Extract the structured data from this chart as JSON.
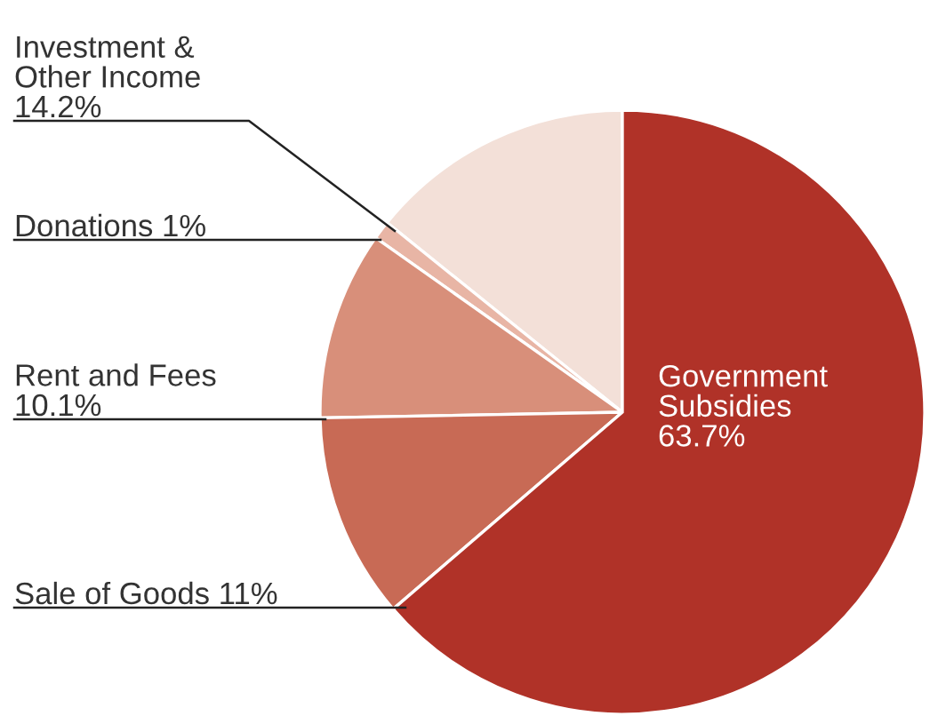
{
  "chart_data": {
    "type": "pie",
    "categories": [
      "Investment &\nOther Income",
      "Donations",
      "Rent and Fees",
      "Sale of Goods",
      "Government\nSubsidies"
    ],
    "values": [
      14.2,
      1,
      10.1,
      11,
      63.7
    ],
    "value_labels": [
      "14.2%",
      "1%",
      "10.1%",
      "11%",
      "63.7%"
    ],
    "colors": [
      "#f3e0d8",
      "#e8b5a5",
      "#d88f7a",
      "#c86a55",
      "#b03228"
    ]
  }
}
